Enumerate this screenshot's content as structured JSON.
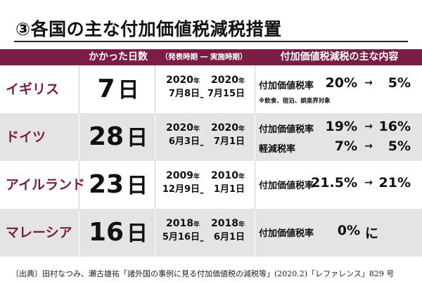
{
  "title": "③各国の主な付加価値税減税措置",
  "header": {
    "days": "かかった日数",
    "period": "（発表時期 ― 実施時期）",
    "content": "付加価値税減税の主な内容"
  },
  "year_unit": "年",
  "rows": [
    {
      "country": "イギリス",
      "days": "7",
      "day_unit": "日",
      "announce": {
        "year": "2020",
        "md": "7月8日"
      },
      "implement": {
        "year": "2020",
        "md": "7月15日"
      },
      "rates": [
        {
          "label": "付加価値税率",
          "from": "20%",
          "arrow": "→",
          "to": "5%"
        }
      ],
      "note": "※飲食、宿泊、娯楽界対象"
    },
    {
      "country": "ドイツ",
      "days": "28",
      "day_unit": "日",
      "announce": {
        "year": "2020",
        "md": "6月3日"
      },
      "implement": {
        "year": "2020",
        "md": "7月1日"
      },
      "rates": [
        {
          "label": "付加価値税率",
          "from": "19%",
          "arrow": "→",
          "to": "16%"
        },
        {
          "label": "軽減税率",
          "from": "7%",
          "arrow": "→",
          "to": "5%"
        }
      ]
    },
    {
      "country": "アイルランド",
      "days": "23",
      "day_unit": "日",
      "announce": {
        "year": "2009",
        "md": "12月9日"
      },
      "implement": {
        "year": "2010",
        "md": "1月1日"
      },
      "rates": [
        {
          "label": "付加価値税率",
          "from": "21.5%",
          "arrow": "→",
          "to": "21%"
        }
      ]
    },
    {
      "country": "マレーシア",
      "days": "16",
      "day_unit": "日",
      "announce": {
        "year": "2018",
        "md": "5月16日"
      },
      "implement": {
        "year": "2018",
        "md": "6月1日"
      },
      "rates": [
        {
          "label": "付加価値税率",
          "from": "0%",
          "arrow": "",
          "to": "に"
        }
      ]
    }
  ],
  "footer": "〔出典〕田村なつみ、瀬古雄祐「諸外国の事例に見る付加価値税の減税等」(2020.2)「レファレンス」829 号"
}
